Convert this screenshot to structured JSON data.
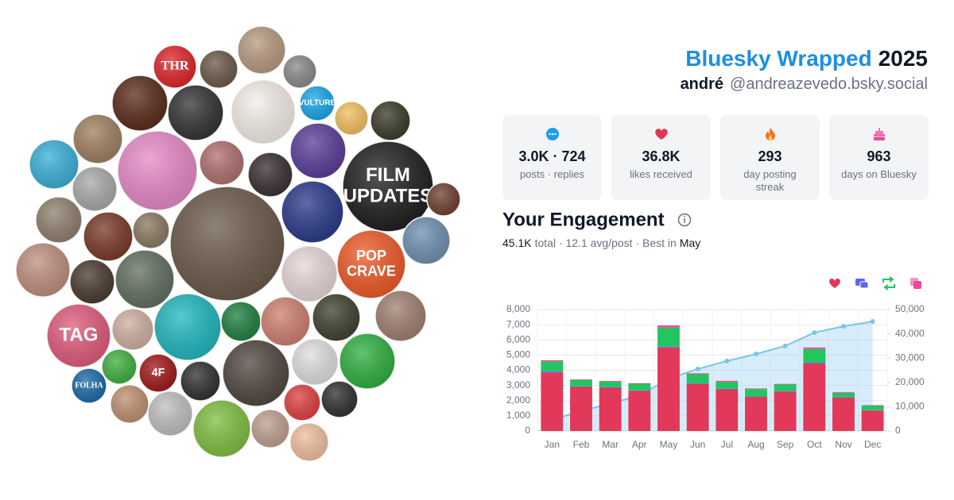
{
  "header": {
    "brand": "Bluesky Wrapped",
    "year": "2025",
    "name": "andré",
    "handle": "@andreazevedo.bsky.social"
  },
  "avatar_logos": [
    "THR",
    "VULTURE",
    "FILM",
    "UPDATES",
    "POP",
    "CRAVE",
    "TAG",
    "FOLHA",
    "4F"
  ],
  "stats": [
    {
      "value": "3.0K · 724",
      "label": "posts · replies"
    },
    {
      "value": "36.8K",
      "label": "likes received"
    },
    {
      "value": "293",
      "label": "day posting streak"
    },
    {
      "value": "963",
      "label": "days on Bluesky"
    }
  ],
  "engagement": {
    "title": "Your Engagement",
    "summary": [
      "45.1K",
      "total · 12.1 avg/post · Best in",
      "May"
    ]
  },
  "chart_data": {
    "type": "bar",
    "stacked": true,
    "categories": [
      "Jan",
      "Feb",
      "Mar",
      "Apr",
      "May",
      "Jun",
      "Jul",
      "Aug",
      "Sep",
      "Oct",
      "Nov",
      "Dec"
    ],
    "series": [
      {
        "color": "#e2385a",
        "values": [
          3850,
          2900,
          2850,
          2650,
          5500,
          3100,
          2750,
          2250,
          2600,
          4450,
          2200,
          1350
        ]
      },
      {
        "color": "#6366f1",
        "values": [
          80,
          40,
          40,
          30,
          60,
          40,
          30,
          30,
          30,
          50,
          30,
          20
        ]
      },
      {
        "color": "#22c55e",
        "values": [
          650,
          420,
          370,
          430,
          1250,
          600,
          450,
          480,
          430,
          900,
          280,
          300
        ]
      },
      {
        "color": "#ec4899",
        "values": [
          80,
          40,
          40,
          40,
          140,
          60,
          70,
          40,
          40,
          100,
          40,
          30
        ]
      },
      {
        "type": "line",
        "axis": "y2",
        "color": "#7cc4ea",
        "values": [
          4700,
          8100,
          11400,
          14500,
          21500,
          25500,
          28800,
          31700,
          35000,
          40500,
          43100,
          45100
        ]
      }
    ],
    "ylim": [
      0,
      8000
    ],
    "yticks": [
      0,
      {
        "value": 1000,
        "label": "1,000"
      },
      {
        "value": 2000,
        "label": "2,000"
      },
      {
        "value": 3000,
        "label": "3,000"
      },
      {
        "value": 4000,
        "label": "4,000"
      },
      {
        "value": 5000,
        "label": "5,000"
      },
      {
        "value": 6000,
        "label": "6,000"
      },
      {
        "value": 7000,
        "label": "7,000"
      },
      {
        "value": 8000,
        "label": "8,000"
      }
    ],
    "y2lim": [
      0,
      50000
    ],
    "y2ticks": [
      0,
      {
        "value": 10000,
        "label": "10,000"
      },
      {
        "value": 20000,
        "label": "20,000"
      },
      {
        "value": 30000,
        "label": "30,000"
      },
      {
        "value": 40000,
        "label": "40,000"
      },
      {
        "value": 50000,
        "label": "50,000"
      }
    ],
    "grid": true
  }
}
